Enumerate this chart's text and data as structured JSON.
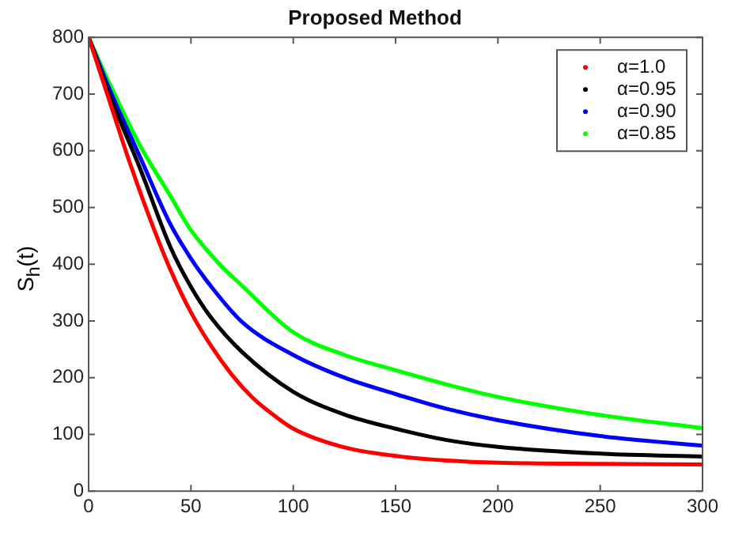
{
  "chart_data": {
    "type": "line",
    "title": "Proposed Method",
    "ylabel": "S$_{h}$(t)",
    "xlim": [
      0,
      300
    ],
    "xticks": [
      0,
      50,
      100,
      150,
      200,
      250,
      300
    ],
    "ylim": [
      0,
      800
    ],
    "yticks": [
      0,
      100,
      200,
      300,
      400,
      500,
      600,
      700,
      800
    ],
    "grid": false,
    "legend": "top right",
    "marker": "none",
    "line_style": "solid",
    "series": [
      {
        "name": "α=1.0",
        "color": "#ff0000",
        "x": [
          0,
          10,
          20,
          30,
          40,
          50,
          60,
          70,
          80,
          90,
          100,
          125,
          150,
          175,
          200,
          250,
          300
        ],
        "values": [
          800,
          690,
          580,
          480,
          390,
          315,
          255,
          205,
          165,
          135,
          110,
          77,
          62,
          54,
          50,
          48,
          47
        ]
      },
      {
        "name": "α=0.95",
        "color": "#000000",
        "x": [
          0,
          10,
          25,
          40,
          50,
          60,
          75,
          100,
          125,
          150,
          175,
          200,
          250,
          300
        ],
        "values": [
          800,
          700,
          570,
          430,
          360,
          305,
          245,
          175,
          135,
          110,
          90,
          78,
          66,
          61
        ]
      },
      {
        "name": "α=0.90",
        "color": "#0000ff",
        "x": [
          0,
          10,
          25,
          40,
          50,
          60,
          75,
          100,
          125,
          150,
          175,
          200,
          250,
          300
        ],
        "values": [
          800,
          710,
          590,
          470,
          410,
          360,
          298,
          240,
          200,
          171,
          145,
          125,
          97,
          80
        ]
      },
      {
        "name": "α=0.85",
        "color": "#00ff00",
        "x": [
          0,
          10,
          25,
          40,
          50,
          64,
          75,
          100,
          125,
          150,
          175,
          200,
          250,
          300
        ],
        "values": [
          800,
          720,
          610,
          520,
          460,
          400,
          362,
          280,
          240,
          213,
          188,
          166,
          134,
          111
        ]
      }
    ]
  }
}
